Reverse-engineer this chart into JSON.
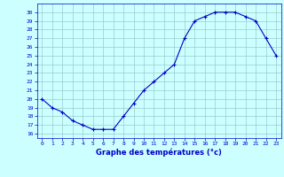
{
  "x": [
    0,
    1,
    2,
    3,
    4,
    5,
    6,
    7,
    8,
    9,
    10,
    11,
    12,
    13,
    14,
    15,
    16,
    17,
    18,
    19,
    20,
    21,
    22,
    23
  ],
  "y": [
    20,
    19,
    18.5,
    17.5,
    17,
    16.5,
    16.5,
    16.5,
    18,
    19.5,
    21,
    22,
    23,
    24,
    27,
    29,
    29.5,
    30,
    30,
    30,
    29.5,
    29,
    27,
    25
  ],
  "line_color": "#0000cc",
  "marker": "+",
  "marker_color": "#0000cc",
  "bg_color": "#ccffff",
  "grid_color": "#99cccc",
  "xlabel": "Graphe des températures (°c)",
  "tick_label_color": "#0000cc",
  "axis_color": "#0000cc",
  "ylim": [
    15.5,
    31.0
  ],
  "yticks": [
    16,
    17,
    18,
    19,
    20,
    21,
    22,
    23,
    24,
    25,
    26,
    27,
    28,
    29,
    30
  ],
  "xticks": [
    0,
    1,
    2,
    3,
    4,
    5,
    6,
    7,
    8,
    9,
    10,
    11,
    12,
    13,
    14,
    15,
    16,
    17,
    18,
    19,
    20,
    21,
    22,
    23
  ]
}
